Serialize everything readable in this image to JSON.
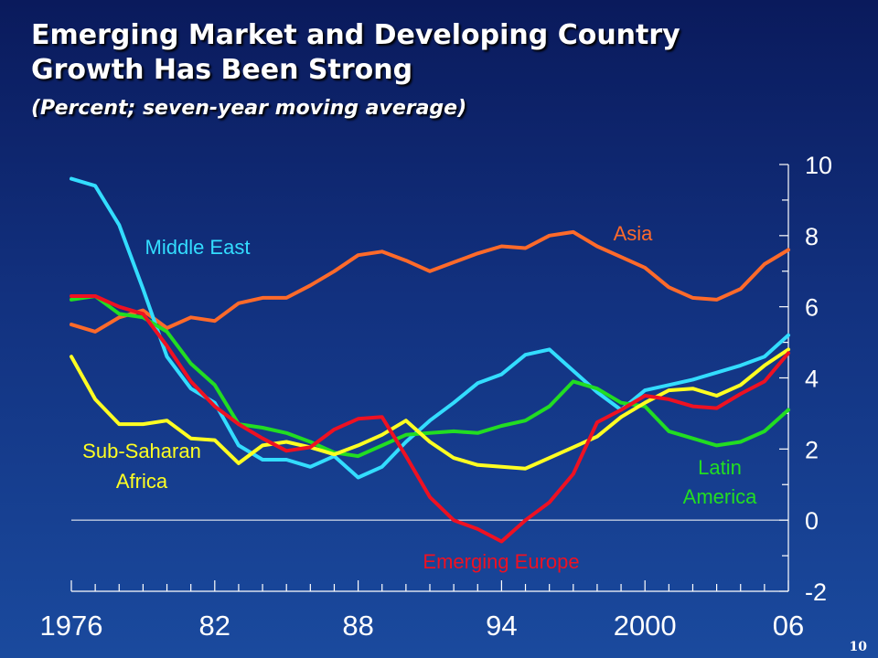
{
  "slide": {
    "title_line1": "Emerging Market and Developing Country",
    "title_line2": "Growth Has Been Strong",
    "subtitle": "(Percent; seven-year moving average)",
    "page_number": "10"
  },
  "chart_data": {
    "type": "line",
    "title": "",
    "xlabel": "",
    "ylabel": "",
    "xlim": [
      1976,
      2006
    ],
    "ylim": [
      -2,
      10
    ],
    "x_ticks": [
      1976,
      1982,
      1988,
      1994,
      2000,
      2006
    ],
    "x_tick_labels": [
      "1976",
      "82",
      "88",
      "94",
      "2000",
      "06"
    ],
    "y_ticks": [
      -2,
      0,
      2,
      4,
      6,
      8,
      10
    ],
    "y_tick_labels": [
      "-2",
      "0",
      "2",
      "4",
      "6",
      "8",
      "10"
    ],
    "y_axis_side": "right",
    "grid": false,
    "x": [
      1976,
      1977,
      1978,
      1979,
      1980,
      1981,
      1982,
      1983,
      1984,
      1985,
      1986,
      1987,
      1988,
      1989,
      1990,
      1991,
      1992,
      1993,
      1994,
      1995,
      1996,
      1997,
      1998,
      1999,
      2000,
      2001,
      2002,
      2003,
      2004,
      2005,
      2006
    ],
    "series": [
      {
        "name": "Asia",
        "color": "#ff6a2a",
        "label_text": "Asia",
        "values": [
          5.5,
          5.3,
          5.7,
          5.9,
          5.4,
          5.7,
          5.6,
          6.1,
          6.25,
          6.25,
          6.6,
          7.0,
          7.45,
          7.55,
          7.3,
          7.0,
          7.25,
          7.5,
          7.7,
          7.65,
          8.0,
          8.1,
          7.7,
          7.4,
          7.1,
          6.55,
          6.25,
          6.2,
          6.5,
          7.2,
          7.6
        ]
      },
      {
        "name": "Middle East",
        "color": "#33ddff",
        "label_text": "Middle East",
        "values": [
          9.6,
          9.4,
          8.3,
          6.5,
          4.6,
          3.7,
          3.3,
          2.1,
          1.7,
          1.7,
          1.5,
          1.8,
          1.2,
          1.5,
          2.2,
          2.8,
          3.3,
          3.85,
          4.1,
          4.65,
          4.8,
          4.2,
          3.6,
          3.1,
          3.65,
          3.8,
          3.95,
          4.15,
          4.35,
          4.6,
          5.2
        ]
      },
      {
        "name": "Latin America",
        "color": "#22dd22",
        "label_text_line1": "Latin",
        "label_text_line2": "America",
        "values": [
          6.2,
          6.3,
          5.8,
          5.7,
          5.3,
          4.4,
          3.8,
          2.7,
          2.6,
          2.45,
          2.2,
          1.9,
          1.8,
          2.1,
          2.4,
          2.45,
          2.5,
          2.45,
          2.65,
          2.8,
          3.2,
          3.9,
          3.7,
          3.3,
          3.2,
          2.5,
          2.3,
          2.1,
          2.2,
          2.5,
          3.1
        ]
      },
      {
        "name": "Sub-Saharan Africa",
        "color": "#ffff22",
        "label_text_line1": "Sub-Saharan",
        "label_text_line2": "Africa",
        "values": [
          4.6,
          3.4,
          2.7,
          2.7,
          2.8,
          2.3,
          2.25,
          1.6,
          2.1,
          2.2,
          2.05,
          1.85,
          2.1,
          2.4,
          2.8,
          2.2,
          1.75,
          1.55,
          1.5,
          1.45,
          1.75,
          2.05,
          2.35,
          2.9,
          3.3,
          3.65,
          3.7,
          3.5,
          3.8,
          4.35,
          4.8
        ]
      },
      {
        "name": "Emerging Europe",
        "color": "#ee1122",
        "label_text": "Emerging Europe",
        "values": [
          6.3,
          6.3,
          6.0,
          5.8,
          4.9,
          3.9,
          3.2,
          2.7,
          2.3,
          1.95,
          2.05,
          2.55,
          2.85,
          2.9,
          1.8,
          0.65,
          0.0,
          -0.25,
          -0.6,
          0.0,
          0.5,
          1.3,
          2.75,
          3.1,
          3.5,
          3.4,
          3.2,
          3.15,
          3.55,
          3.9,
          4.7
        ]
      }
    ]
  }
}
